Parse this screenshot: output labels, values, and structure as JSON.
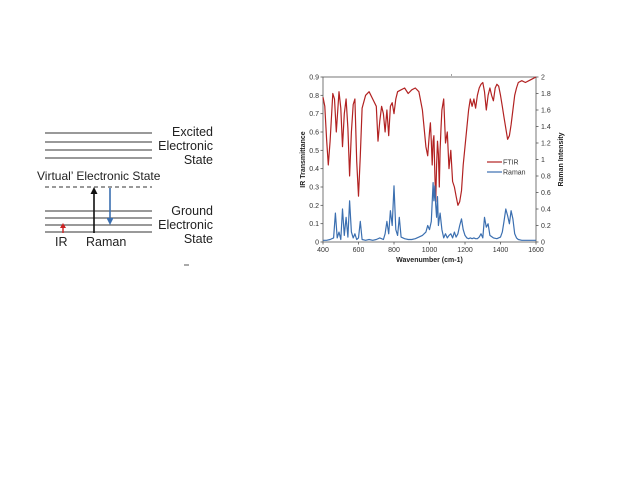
{
  "energy_diagram": {
    "excited_label": [
      "Excited",
      "Electronic",
      "State"
    ],
    "virtual_label": "Virtual’ Electronic State",
    "ground_label": [
      "Ground",
      "Electronic",
      "State"
    ],
    "ir_label": "IR",
    "raman_label": "Raman"
  },
  "colors": {
    "ftir": "#b22222",
    "raman": "#3b6fb0",
    "ir_arrow": "#cc2222",
    "raman_down_arrow": "#3b6fb0"
  },
  "chart_data": {
    "type": "line",
    "title": "",
    "xlabel": "Wavenumber (cm-1)",
    "ylabel_left": "IR Transmittance",
    "ylabel_right": "Raman Intensity",
    "xlim": [
      400,
      1600
    ],
    "ylim_left": [
      0,
      0.9
    ],
    "ylim_right": [
      0,
      2
    ],
    "x_ticks": [
      "400",
      "600",
      "800",
      "1000",
      "1200",
      "1400",
      "1600"
    ],
    "y_left_ticks": [
      "0",
      "0.1",
      "0.2",
      "0.3",
      "0.4",
      "0.5",
      "0.6",
      "0.7",
      "0.8",
      "0.9"
    ],
    "y_right_ticks": [
      "0",
      "0.2",
      "0.4",
      "0.6",
      "0.8",
      "1",
      "1.2",
      "1.4",
      "1.6",
      "1.8",
      "2"
    ],
    "legend_position": "right",
    "grid": false,
    "series": [
      {
        "name": "FTIR",
        "axis": "left",
        "x": [
          400,
          410,
          420,
          430,
          440,
          455,
          465,
          475,
          490,
          500,
          510,
          520,
          530,
          540,
          550,
          560,
          570,
          580,
          590,
          600,
          610,
          620,
          640,
          660,
          680,
          700,
          710,
          720,
          730,
          740,
          750,
          760,
          770,
          780,
          790,
          800,
          810,
          820,
          840,
          860,
          880,
          900,
          920,
          940,
          960,
          980,
          990,
          1000,
          1005,
          1010,
          1015,
          1020,
          1025,
          1030,
          1035,
          1040,
          1045,
          1050,
          1055,
          1060,
          1065,
          1070,
          1080,
          1090,
          1100,
          1110,
          1120,
          1130,
          1140,
          1150,
          1160,
          1170,
          1180,
          1190,
          1200,
          1210,
          1220,
          1230,
          1240,
          1250,
          1260,
          1270,
          1280,
          1290,
          1300,
          1310,
          1320,
          1330,
          1340,
          1350,
          1360,
          1370,
          1380,
          1390,
          1400,
          1410,
          1420,
          1430,
          1440,
          1450,
          1460,
          1470,
          1480,
          1490,
          1500,
          1520,
          1540,
          1560,
          1580,
          1600
        ],
        "y": [
          0.79,
          0.74,
          0.56,
          0.42,
          0.55,
          0.81,
          0.78,
          0.6,
          0.82,
          0.73,
          0.52,
          0.7,
          0.78,
          0.62,
          0.36,
          0.6,
          0.75,
          0.78,
          0.44,
          0.25,
          0.47,
          0.73,
          0.8,
          0.82,
          0.78,
          0.74,
          0.55,
          0.66,
          0.74,
          0.7,
          0.6,
          0.72,
          0.58,
          0.74,
          0.76,
          0.7,
          0.78,
          0.82,
          0.83,
          0.84,
          0.81,
          0.83,
          0.84,
          0.82,
          0.72,
          0.52,
          0.47,
          0.6,
          0.65,
          0.55,
          0.42,
          0.55,
          0.58,
          0.38,
          0.22,
          0.42,
          0.55,
          0.48,
          0.3,
          0.5,
          0.62,
          0.72,
          0.78,
          0.54,
          0.6,
          0.4,
          0.5,
          0.33,
          0.3,
          0.25,
          0.2,
          0.22,
          0.28,
          0.42,
          0.52,
          0.62,
          0.72,
          0.78,
          0.74,
          0.78,
          0.73,
          0.8,
          0.84,
          0.86,
          0.87,
          0.82,
          0.72,
          0.8,
          0.84,
          0.8,
          0.77,
          0.84,
          0.86,
          0.85,
          0.8,
          0.74,
          0.68,
          0.62,
          0.56,
          0.58,
          0.64,
          0.72,
          0.8,
          0.84,
          0.87,
          0.88,
          0.87,
          0.88,
          0.89,
          0.9
        ]
      },
      {
        "name": "Raman",
        "axis": "right",
        "x": [
          400,
          420,
          440,
          460,
          470,
          480,
          490,
          500,
          510,
          520,
          530,
          540,
          550,
          560,
          570,
          580,
          590,
          600,
          610,
          620,
          640,
          660,
          680,
          700,
          720,
          740,
          750,
          760,
          770,
          780,
          790,
          800,
          810,
          820,
          830,
          840,
          860,
          880,
          900,
          920,
          940,
          960,
          980,
          990,
          1000,
          1010,
          1020,
          1025,
          1030,
          1035,
          1040,
          1045,
          1050,
          1060,
          1070,
          1080,
          1090,
          1100,
          1110,
          1120,
          1130,
          1140,
          1150,
          1160,
          1170,
          1180,
          1190,
          1200,
          1210,
          1220,
          1230,
          1240,
          1250,
          1260,
          1270,
          1280,
          1290,
          1300,
          1310,
          1320,
          1330,
          1340,
          1360,
          1380,
          1400,
          1410,
          1420,
          1430,
          1440,
          1450,
          1460,
          1470,
          1480,
          1490,
          1500,
          1520,
          1540,
          1560,
          1580,
          1600
        ],
        "y": [
          0.02,
          0.02,
          0.03,
          0.05,
          0.35,
          0.05,
          0.12,
          0.03,
          0.4,
          0.08,
          0.3,
          0.06,
          0.5,
          0.12,
          0.05,
          0.1,
          0.03,
          0.05,
          0.25,
          0.03,
          0.02,
          0.03,
          0.02,
          0.03,
          0.05,
          0.03,
          0.1,
          0.25,
          0.1,
          0.38,
          0.2,
          0.68,
          0.15,
          0.08,
          0.3,
          0.06,
          0.04,
          0.03,
          0.03,
          0.04,
          0.06,
          0.08,
          0.12,
          0.2,
          0.15,
          0.25,
          0.72,
          0.5,
          0.68,
          0.45,
          0.3,
          0.55,
          0.2,
          0.35,
          0.15,
          0.05,
          0.1,
          0.05,
          0.08,
          0.1,
          0.05,
          0.12,
          0.06,
          0.1,
          0.2,
          0.28,
          0.15,
          0.08,
          0.05,
          0.04,
          0.05,
          0.04,
          0.05,
          0.04,
          0.04,
          0.06,
          0.1,
          0.05,
          0.3,
          0.18,
          0.22,
          0.08,
          0.05,
          0.04,
          0.06,
          0.12,
          0.25,
          0.4,
          0.32,
          0.22,
          0.38,
          0.28,
          0.1,
          0.05,
          0.03,
          0.02,
          0.02,
          0.02,
          0.02,
          0.02
        ]
      }
    ]
  }
}
